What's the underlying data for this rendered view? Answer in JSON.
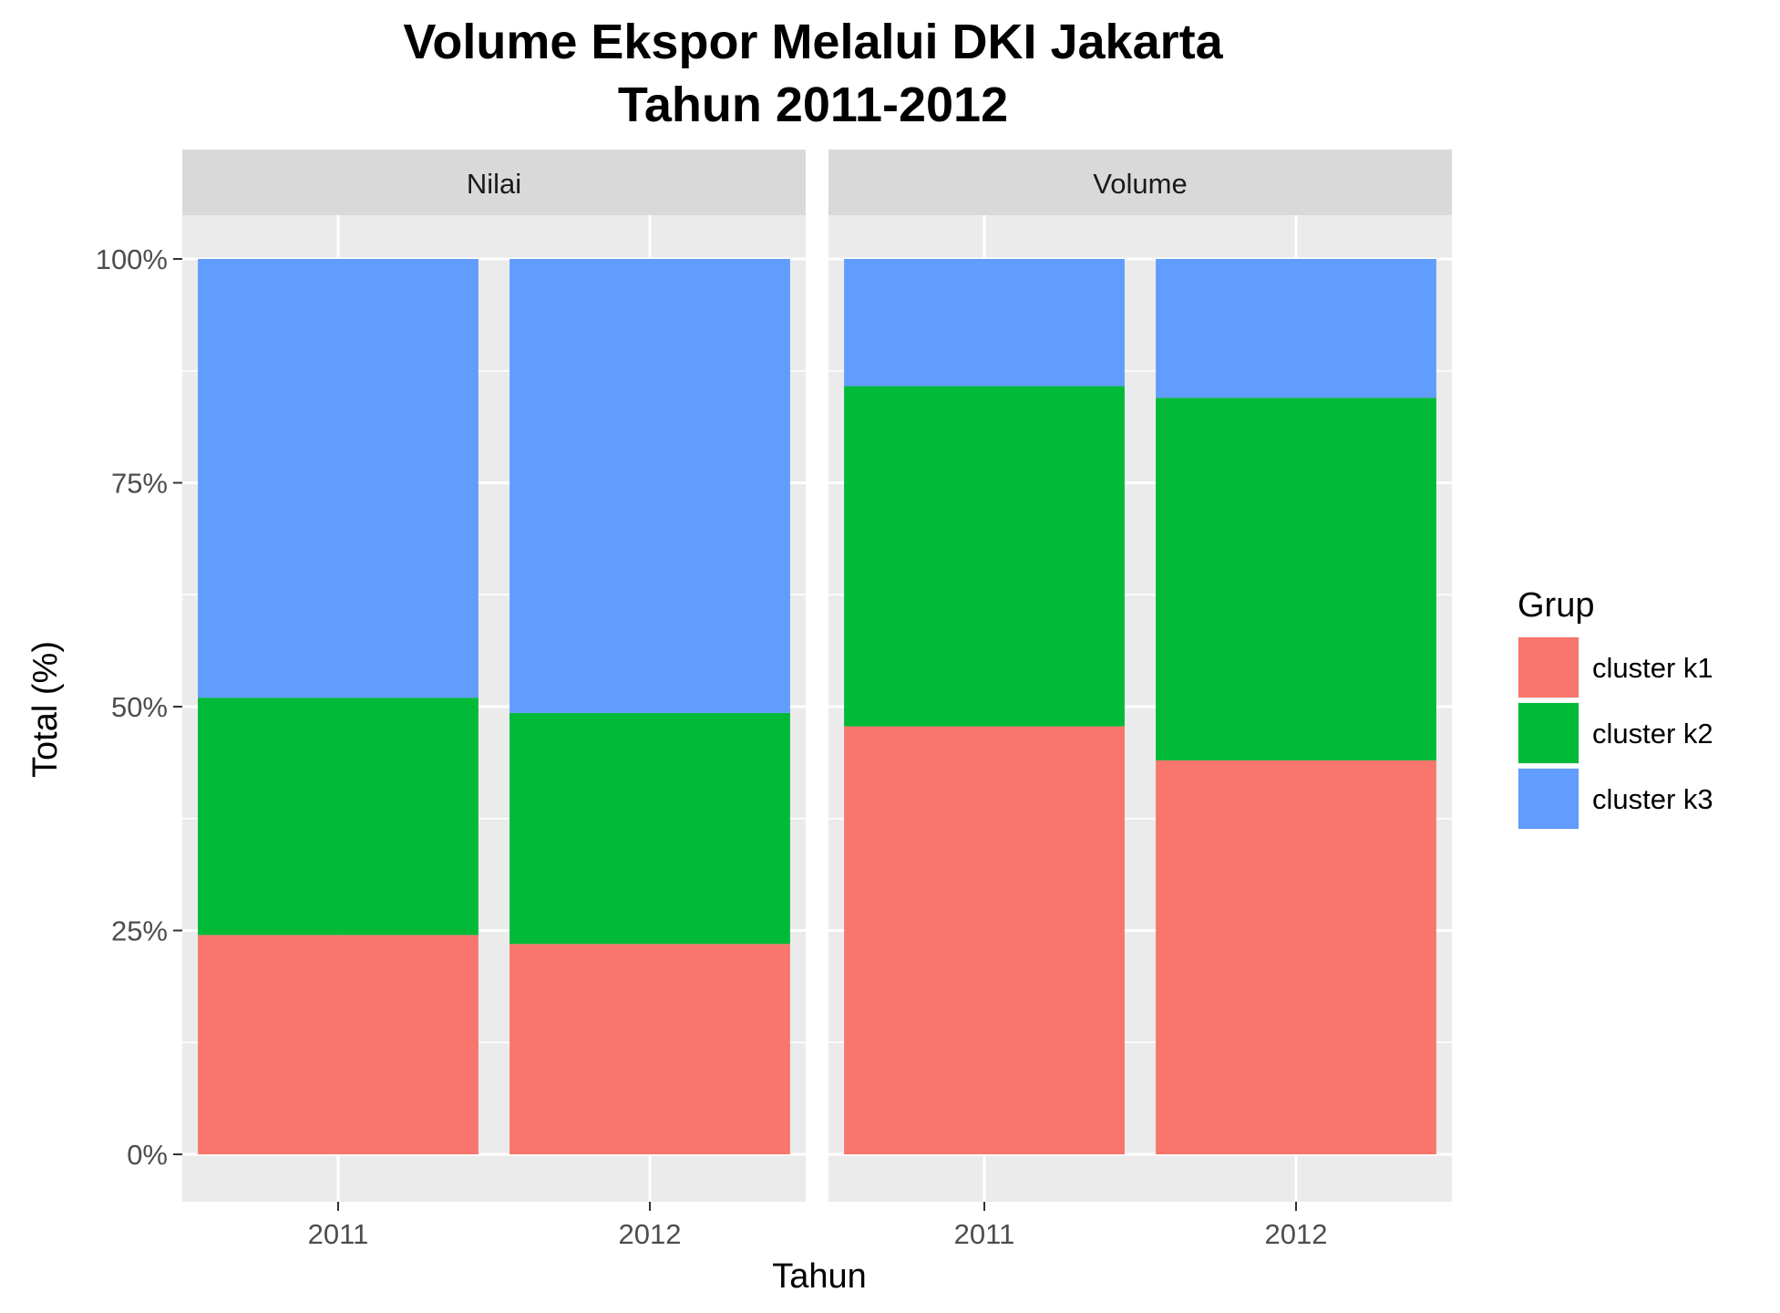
{
  "chart_data": {
    "type": "bar",
    "stacked": "percent",
    "title_lines": [
      "Volume Ekspor Melalui DKI Jakarta",
      "Tahun 2011-2012"
    ],
    "xlabel": "Tahun",
    "ylabel": "Total (%)",
    "ylim": [
      0,
      100
    ],
    "yticks": [
      0,
      25,
      50,
      75,
      100
    ],
    "ytick_labels": [
      "0%",
      "25%",
      "50%",
      "75%",
      "100%"
    ],
    "categories": [
      "2011",
      "2012"
    ],
    "legend": {
      "title": "Grup",
      "position": "right"
    },
    "grid": true,
    "panel_background": "#EBEBEB",
    "strip_background": "#D9D9D9",
    "series": [
      {
        "name": "cluster k1",
        "color": "#F8766D"
      },
      {
        "name": "cluster k2",
        "color": "#00BA38"
      },
      {
        "name": "cluster k3",
        "color": "#619CFF"
      }
    ],
    "facets": [
      {
        "label": "Nilai",
        "values": {
          "cluster k1": [
            24.5,
            23.5
          ],
          "cluster k2": [
            26.5,
            25.8
          ],
          "cluster k3": [
            49.0,
            50.7
          ]
        }
      },
      {
        "label": "Volume",
        "values": {
          "cluster k1": [
            47.8,
            44.0
          ],
          "cluster k2": [
            38.0,
            40.5
          ],
          "cluster k3": [
            14.2,
            15.5
          ]
        }
      }
    ]
  }
}
